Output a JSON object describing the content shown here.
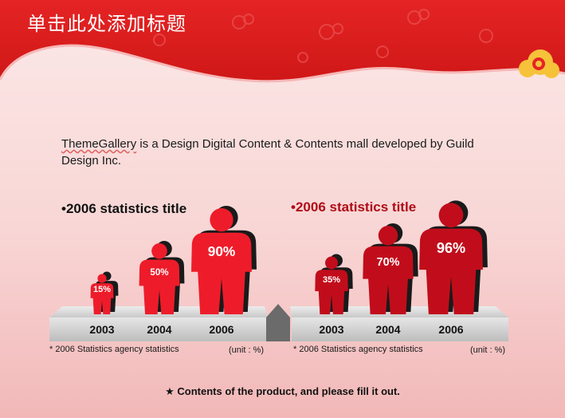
{
  "title": "单击此处添加标题",
  "intro": {
    "brand": "ThemeGallery",
    "text": "  is a Design Digital Content & Contents mall developed by Guild Design Inc."
  },
  "colors": {
    "left_figure": "#ee1c2a",
    "right_figure": "#c10d1b",
    "shadow": "#1a1a1a",
    "header_red": "#dc1f1f"
  },
  "footer": {
    "star": "★",
    "text": "Contents of the product, and please fill it out."
  },
  "chart_data": [
    {
      "type": "bar",
      "title": "•2006 statistics title",
      "categories": [
        "2003",
        "2004",
        "2006"
      ],
      "values": [
        15,
        50,
        90
      ],
      "value_labels": [
        "15%",
        "50%",
        "90%"
      ],
      "ylim": [
        0,
        100
      ],
      "footnote": "* 2006  Statistics agency statistics",
      "unit": "(unit : %)",
      "icon": "person-figure-icon"
    },
    {
      "type": "bar",
      "title": "•2006 statistics title",
      "categories": [
        "2003",
        "2004",
        "2006"
      ],
      "values": [
        35,
        70,
        96
      ],
      "value_labels": [
        "35%",
        "70%",
        "96%"
      ],
      "ylim": [
        0,
        100
      ],
      "footnote": "* 2006  Statistics agency statistics",
      "unit": "(unit : %)",
      "icon": "person-figure-icon"
    }
  ]
}
